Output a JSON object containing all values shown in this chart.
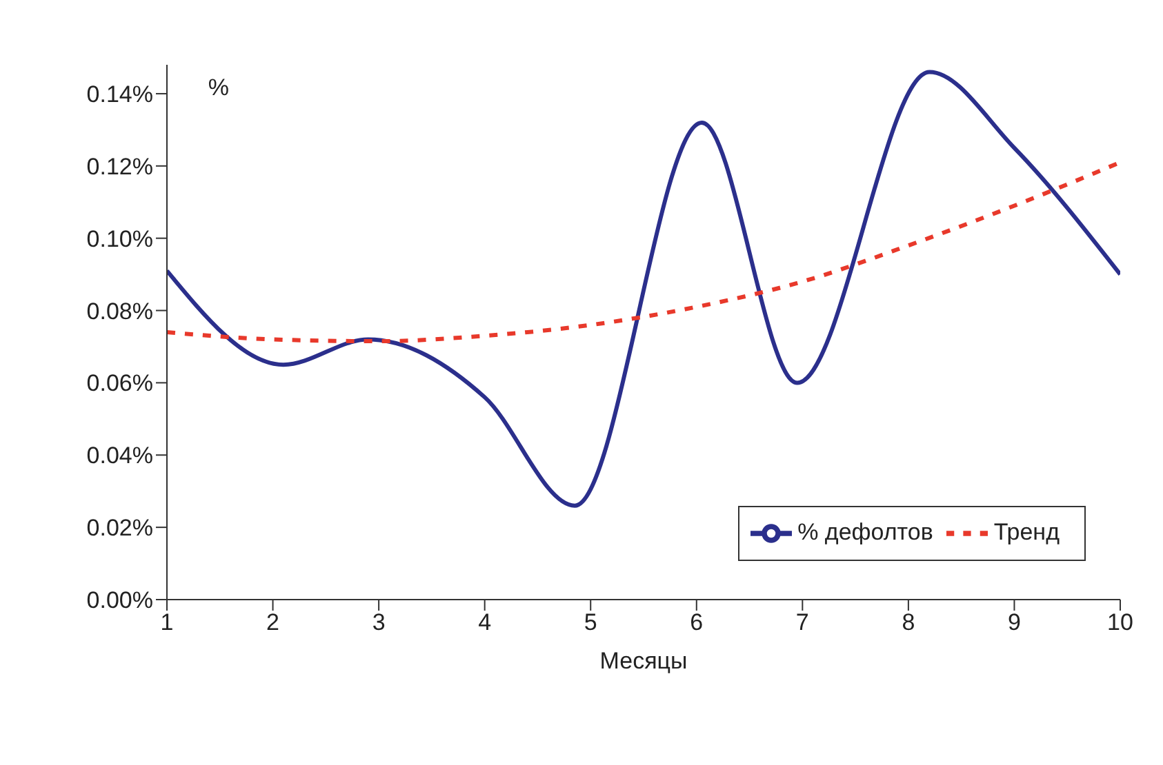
{
  "chart_data": {
    "type": "line",
    "xlabel": "Месяцы",
    "ylabel": "%",
    "xlim": [
      1,
      10
    ],
    "xticks": [
      1,
      2,
      3,
      4,
      5,
      6,
      7,
      8,
      9,
      10
    ],
    "ylim": [
      0,
      0.148
    ],
    "yticks": [
      {
        "value": 0,
        "label": "0.00%"
      },
      {
        "value": 0.02,
        "label": "0.02%"
      },
      {
        "value": 0.04,
        "label": "0.04%"
      },
      {
        "value": 0.06,
        "label": "0.06%"
      },
      {
        "value": 0.08,
        "label": "0.08%"
      },
      {
        "value": 0.1,
        "label": "0.10%"
      },
      {
        "value": 0.12,
        "label": "0.12%"
      },
      {
        "value": 0.14,
        "label": "0.14%"
      }
    ],
    "grid": false,
    "legend": "bottom right",
    "marker": "none",
    "series": [
      {
        "name": "% дефолтов",
        "color": "#2b2f8c",
        "line_style": "solid",
        "x": [
          1,
          2.1,
          2.9,
          4,
          4.85,
          6.05,
          6.95,
          8.2,
          9,
          10
        ],
        "values": [
          0.091,
          0.065,
          0.072,
          0.056,
          0.026,
          0.132,
          0.06,
          0.146,
          0.125,
          0.09
        ]
      },
      {
        "name": "Тренд",
        "color": "#e8392b",
        "line_style": "dashed",
        "x": [
          1,
          2,
          3,
          4,
          5,
          6,
          7,
          8,
          9,
          10
        ],
        "values": [
          0.074,
          0.072,
          0.0715,
          0.073,
          0.076,
          0.081,
          0.088,
          0.098,
          0.109,
          0.121
        ]
      }
    ]
  }
}
